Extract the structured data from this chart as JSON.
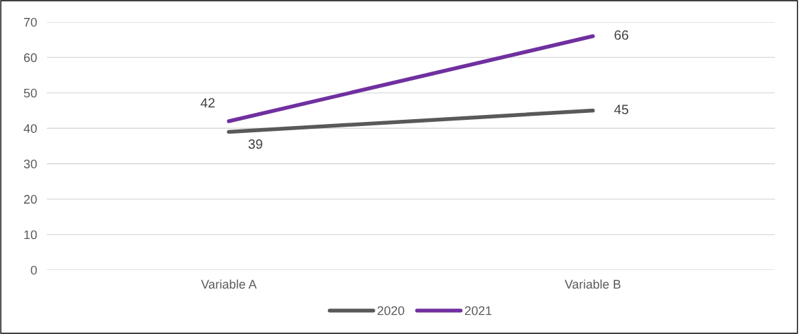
{
  "chart_data": {
    "type": "line",
    "categories": [
      "Variable A",
      "Variable B"
    ],
    "series": [
      {
        "name": "2020",
        "color": "#595959",
        "values": [
          39,
          45
        ]
      },
      {
        "name": "2021",
        "color": "#7030a0",
        "values": [
          42,
          66
        ]
      }
    ],
    "ylim": [
      0,
      70
    ],
    "yticks": [
      0,
      10,
      20,
      30,
      40,
      50,
      60,
      70
    ],
    "grid": "y",
    "legend": "bottom",
    "data_labels": true,
    "marker": "none",
    "line_style": "solid"
  }
}
